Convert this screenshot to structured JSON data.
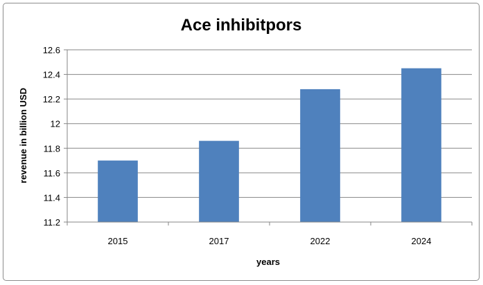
{
  "chart_data": {
    "type": "bar",
    "title": "Ace inhibitpors",
    "xlabel": "years",
    "ylabel": "revenue in billion USD",
    "categories": [
      "2015",
      "2017",
      "2022",
      "2024"
    ],
    "values": [
      11.7,
      11.86,
      12.28,
      12.45
    ],
    "ylim": [
      11.2,
      12.6
    ],
    "yticks": [
      "11.2",
      "11.4",
      "11.6",
      "11.8",
      "12",
      "12.2",
      "12.4",
      "12.6"
    ],
    "grid": true,
    "legend": "none",
    "bar_color": "#4f81bd"
  }
}
